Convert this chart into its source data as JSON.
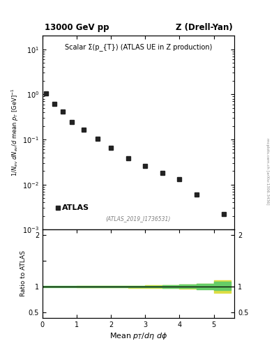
{
  "title_left": "13000 GeV pp",
  "title_right": "Z (Drell-Yan)",
  "plot_title": "Scalar Σ(p_{T}) (ATLAS UE in Z production)",
  "atlas_label": "ATLAS",
  "dataset_label": "(ATLAS_2019_I1736531)",
  "ylabel_main": "1/N_{ev} dN_{ev}/d mean p_{T} [GeV]^{-1}",
  "ylabel_ratio": "Ratio to ATLAS",
  "xlabel": "Mean p_{T}/dη dφ",
  "watermark": "mcplots.cern.ch [arXiv:1306.3436]",
  "data_x": [
    0.1,
    0.35,
    0.6,
    0.85,
    1.2,
    1.6,
    2.0,
    2.5,
    3.0,
    3.5,
    4.0,
    4.5,
    5.3
  ],
  "data_y": [
    1.05,
    0.62,
    0.42,
    0.24,
    0.165,
    0.105,
    0.065,
    0.038,
    0.026,
    0.018,
    0.013,
    0.006,
    0.0022
  ],
  "ratio_band_x": [
    0.0,
    0.5,
    1.0,
    1.5,
    2.0,
    2.5,
    3.0,
    3.5,
    4.0,
    4.5,
    5.0,
    5.5
  ],
  "ratio_green_lo": [
    0.99,
    0.99,
    0.99,
    0.99,
    0.99,
    0.99,
    0.99,
    0.98,
    0.97,
    0.95,
    0.93,
    0.93
  ],
  "ratio_green_hi": [
    1.01,
    1.01,
    1.01,
    1.01,
    1.01,
    1.01,
    1.02,
    1.03,
    1.04,
    1.06,
    1.1,
    1.1
  ],
  "ratio_yellow_lo": [
    0.995,
    0.995,
    0.99,
    0.99,
    0.985,
    0.98,
    0.975,
    0.97,
    0.965,
    0.96,
    0.88,
    0.88
  ],
  "ratio_yellow_hi": [
    1.005,
    1.005,
    1.01,
    1.01,
    1.015,
    1.02,
    1.025,
    1.03,
    1.04,
    1.05,
    1.12,
    1.12
  ],
  "xlim": [
    0,
    5.6
  ],
  "ylim_main_log": [
    0.001,
    20
  ],
  "ylim_ratio": [
    0.4,
    2.1
  ],
  "marker_color": "#222222",
  "marker_size": 4.5,
  "green_color": "#66cc66",
  "yellow_color": "#dddd44",
  "ratio_line_y": 1.0,
  "background_color": "#ffffff"
}
